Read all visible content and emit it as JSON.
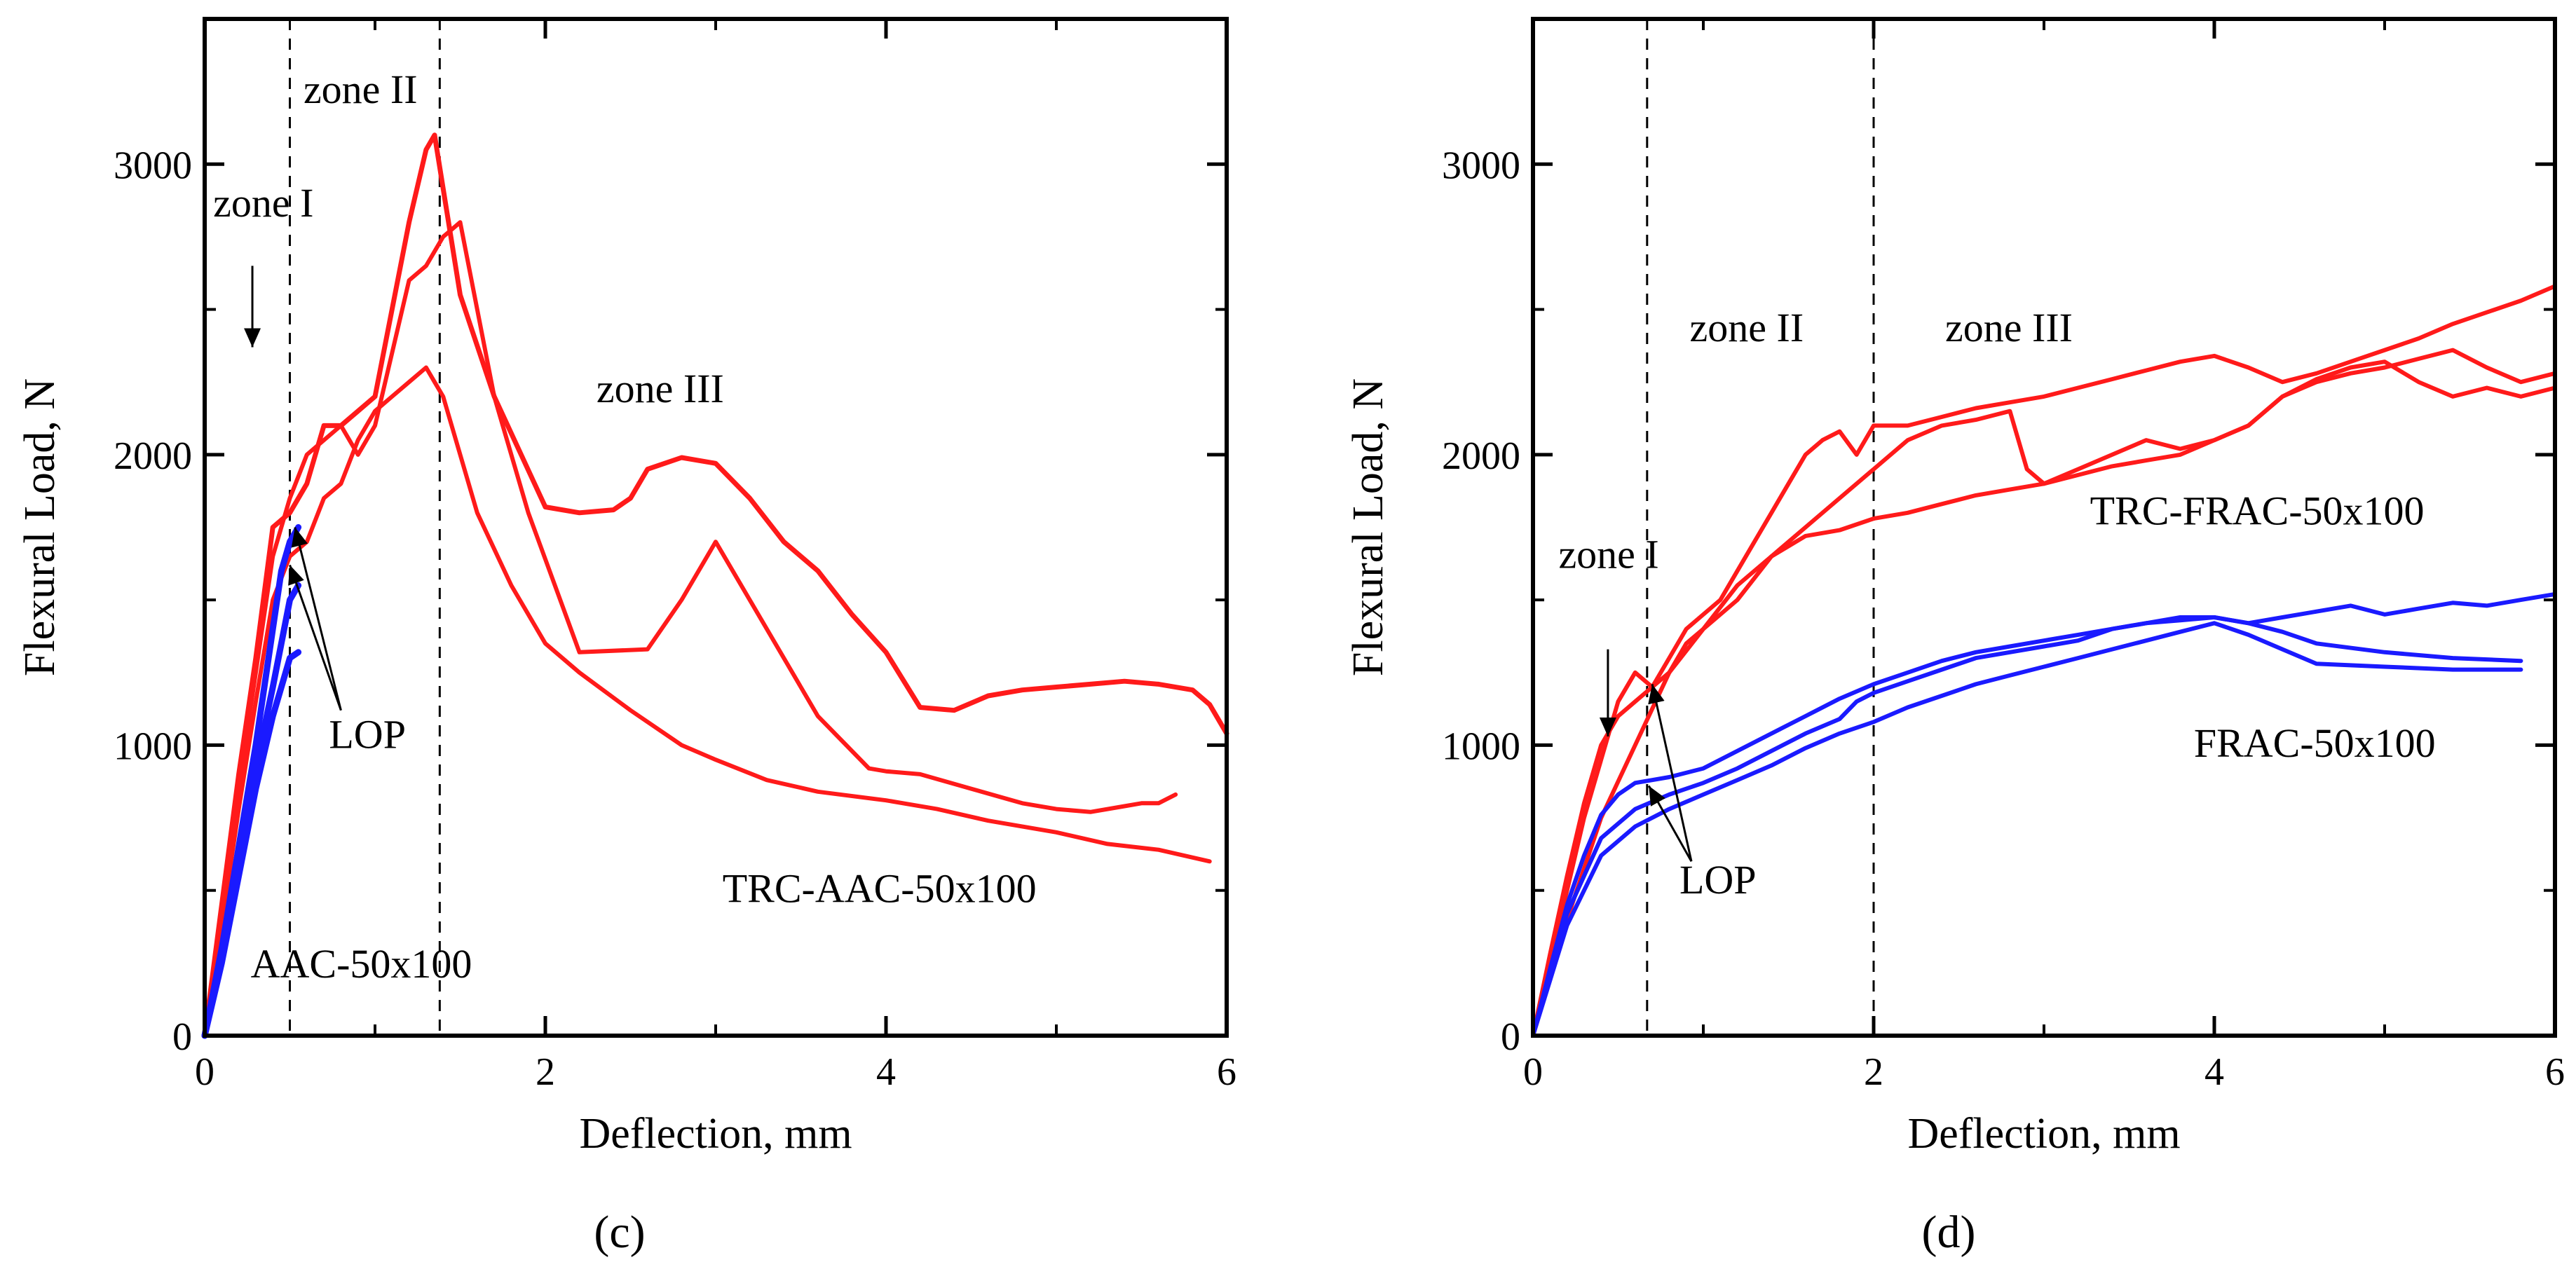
{
  "colors": {
    "red": "#ff1a1a",
    "blue": "#1a1aff",
    "axis": "#000000"
  },
  "chart_data": [
    {
      "type": "line",
      "panel_label": "(c)",
      "xlabel": "Deflection, mm",
      "ylabel": "Flexural Load, N",
      "xlim": [
        0,
        6
      ],
      "ylim": [
        0,
        3500
      ],
      "xticks": [
        0,
        2,
        4,
        6
      ],
      "xtick_labels": [
        "0",
        "2",
        "4",
        "6"
      ],
      "yticks": [
        0,
        1000,
        2000,
        3000
      ],
      "ytick_labels": [
        "0",
        "1000",
        "2000",
        "3000"
      ],
      "vlines": [
        0.5,
        1.38
      ],
      "annotations": [
        {
          "text": "zone I",
          "x": 0.05,
          "y": 2820
        },
        {
          "text": "zone II",
          "x": 0.58,
          "y": 3210
        },
        {
          "text": "zone III",
          "x": 2.3,
          "y": 2180
        },
        {
          "text": "LOP",
          "x": 0.73,
          "y": 990
        },
        {
          "text": "TRC-AAC-50x100",
          "x": 3.04,
          "y": 460
        },
        {
          "text": "AAC-50x100",
          "x": 0.27,
          "y": 200
        }
      ],
      "arrows": [
        {
          "from": [
            0.28,
            2650
          ],
          "to": [
            0.28,
            2370
          ]
        },
        {
          "from": [
            0.8,
            1120
          ],
          "to": [
            0.53,
            1750
          ]
        },
        {
          "from": [
            0.8,
            1120
          ],
          "to": [
            0.5,
            1620
          ]
        }
      ],
      "series": [
        {
          "name": "TRC-AAC-50x100 (1)",
          "color": "red",
          "width": 7,
          "x": [
            0,
            0.1,
            0.2,
            0.3,
            0.4,
            0.5,
            0.6,
            0.7,
            0.8,
            0.9,
            1.0,
            1.1,
            1.2,
            1.3,
            1.35,
            1.5,
            1.7,
            2.0,
            2.2,
            2.4,
            2.5,
            2.6,
            2.8,
            3.0,
            3.2,
            3.4,
            3.6,
            3.8,
            4.0,
            4.2,
            4.4,
            4.6,
            4.8,
            5.0,
            5.2,
            5.4,
            5.6,
            5.8,
            5.9,
            6.0
          ],
          "y": [
            0,
            450,
            900,
            1300,
            1750,
            1800,
            1900,
            2100,
            2100,
            2150,
            2200,
            2500,
            2800,
            3050,
            3100,
            2550,
            2200,
            1820,
            1800,
            1810,
            1850,
            1950,
            1990,
            1970,
            1850,
            1700,
            1600,
            1450,
            1320,
            1130,
            1120,
            1170,
            1190,
            1200,
            1210,
            1220,
            1210,
            1190,
            1140,
            1040
          ]
        },
        {
          "name": "TRC-AAC-50x100 (2)",
          "color": "red",
          "width": 6,
          "x": [
            0,
            0.1,
            0.2,
            0.3,
            0.4,
            0.5,
            0.6,
            0.7,
            0.8,
            0.9,
            1.0,
            1.1,
            1.2,
            1.3,
            1.4,
            1.5,
            1.7,
            1.9,
            2.2,
            2.6,
            2.8,
            3.0,
            3.2,
            3.6,
            3.9,
            4.0,
            4.2,
            4.5,
            4.8,
            5.0,
            5.2,
            5.4,
            5.5,
            5.6,
            5.7
          ],
          "y": [
            0,
            420,
            850,
            1250,
            1650,
            1850,
            2000,
            2050,
            2100,
            2000,
            2100,
            2350,
            2600,
            2650,
            2750,
            2800,
            2200,
            1800,
            1320,
            1330,
            1500,
            1700,
            1500,
            1100,
            920,
            910,
            900,
            850,
            800,
            780,
            770,
            790,
            800,
            800,
            830
          ]
        },
        {
          "name": "TRC-AAC-50x100 (3)",
          "color": "red",
          "width": 6,
          "x": [
            0,
            0.1,
            0.2,
            0.3,
            0.4,
            0.5,
            0.6,
            0.7,
            0.8,
            0.9,
            1.0,
            1.1,
            1.2,
            1.3,
            1.35,
            1.4,
            1.6,
            1.8,
            2.0,
            2.2,
            2.5,
            2.8,
            3.0,
            3.3,
            3.6,
            4.0,
            4.3,
            4.6,
            5.0,
            5.3,
            5.6,
            5.9
          ],
          "y": [
            0,
            380,
            780,
            1150,
            1500,
            1650,
            1700,
            1850,
            1900,
            2050,
            2150,
            2200,
            2250,
            2300,
            2250,
            2200,
            1800,
            1550,
            1350,
            1250,
            1120,
            1000,
            950,
            880,
            840,
            810,
            780,
            740,
            700,
            660,
            640,
            600
          ]
        },
        {
          "name": "AAC-50x100 (1)",
          "color": "blue",
          "width": 9,
          "x": [
            0,
            0.1,
            0.2,
            0.3,
            0.4,
            0.45,
            0.5,
            0.55
          ],
          "y": [
            0,
            300,
            650,
            1000,
            1400,
            1600,
            1700,
            1750
          ]
        },
        {
          "name": "AAC-50x100 (2)",
          "color": "blue",
          "width": 9,
          "x": [
            0,
            0.1,
            0.2,
            0.3,
            0.4,
            0.45,
            0.5,
            0.55
          ],
          "y": [
            0,
            250,
            550,
            850,
            1100,
            1200,
            1300,
            1320
          ]
        },
        {
          "name": "AAC-50x100 (3)",
          "color": "blue",
          "width": 9,
          "x": [
            0,
            0.1,
            0.2,
            0.3,
            0.4,
            0.5,
            0.55
          ],
          "y": [
            0,
            270,
            600,
            920,
            1200,
            1500,
            1550
          ]
        }
      ]
    },
    {
      "type": "line",
      "panel_label": "(d)",
      "xlabel": "Deflection, mm",
      "ylabel": "Flexural Load, N",
      "xlim": [
        0,
        6
      ],
      "ylim": [
        0,
        3500
      ],
      "xticks": [
        0,
        2,
        4,
        6
      ],
      "xtick_labels": [
        "0",
        "2",
        "4",
        "6"
      ],
      "yticks": [
        0,
        1000,
        2000,
        3000
      ],
      "ytick_labels": [
        "0",
        "1000",
        "2000",
        "3000"
      ],
      "vlines": [
        0.67,
        2.0
      ],
      "annotations": [
        {
          "text": "zone II",
          "x": 0.92,
          "y": 2390
        },
        {
          "text": "zone III",
          "x": 2.42,
          "y": 2390
        },
        {
          "text": "zone I",
          "x": 0.15,
          "y": 1610
        },
        {
          "text": "LOP",
          "x": 0.86,
          "y": 490
        },
        {
          "text": "TRC-FRAC-50x100",
          "x": 3.27,
          "y": 1760
        },
        {
          "text": "FRAC-50x100",
          "x": 3.88,
          "y": 960
        }
      ],
      "arrows": [
        {
          "from": [
            0.44,
            1330
          ],
          "to": [
            0.44,
            1030
          ]
        },
        {
          "from": [
            0.93,
            600
          ],
          "to": [
            0.7,
            1210
          ]
        },
        {
          "from": [
            0.93,
            600
          ],
          "to": [
            0.68,
            860
          ]
        }
      ],
      "series": [
        {
          "name": "TRC-FRAC-50x100 (1)",
          "color": "red",
          "width": 6,
          "x": [
            0,
            0.1,
            0.2,
            0.3,
            0.4,
            0.5,
            0.6,
            0.7,
            0.8,
            0.9,
            1.0,
            1.1,
            1.2,
            1.3,
            1.4,
            1.5,
            1.6,
            1.7,
            1.8,
            1.9,
            2.0,
            2.2,
            2.4,
            2.6,
            2.8,
            3.0,
            3.2,
            3.4,
            3.6,
            3.8,
            4.0,
            4.2,
            4.4,
            4.6,
            4.8,
            5.0,
            5.2,
            5.4,
            5.6,
            5.8,
            6.0
          ],
          "y": [
            0,
            250,
            500,
            750,
            950,
            1150,
            1250,
            1200,
            1300,
            1400,
            1450,
            1500,
            1600,
            1700,
            1800,
            1900,
            2000,
            2050,
            2080,
            2000,
            2100,
            2100,
            2130,
            2160,
            2180,
            2200,
            2230,
            2260,
            2290,
            2320,
            2340,
            2300,
            2250,
            2280,
            2320,
            2360,
            2400,
            2450,
            2490,
            2530,
            2580
          ]
        },
        {
          "name": "TRC-FRAC-50x100 (2)",
          "color": "red",
          "width": 6,
          "x": [
            0,
            0.1,
            0.2,
            0.3,
            0.4,
            0.5,
            0.6,
            0.7,
            0.8,
            0.9,
            1.0,
            1.1,
            1.2,
            1.4,
            1.6,
            1.8,
            2.0,
            2.2,
            2.4,
            2.6,
            2.8,
            2.9,
            3.0,
            3.2,
            3.4,
            3.6,
            3.8,
            4.0,
            4.2,
            4.4,
            4.6,
            4.8,
            5.0,
            5.2,
            5.4,
            5.6,
            5.8,
            6.0
          ],
          "y": [
            0,
            280,
            550,
            800,
            1000,
            1100,
            1150,
            1200,
            1250,
            1350,
            1400,
            1450,
            1500,
            1650,
            1750,
            1850,
            1950,
            2050,
            2100,
            2120,
            2150,
            1950,
            1900,
            1950,
            2000,
            2050,
            2020,
            2050,
            2100,
            2200,
            2250,
            2280,
            2300,
            2330,
            2360,
            2300,
            2250,
            2280
          ]
        },
        {
          "name": "TRC-FRAC-50x100 (3)",
          "color": "red",
          "width": 6,
          "x": [
            0,
            0.2,
            0.4,
            0.6,
            0.8,
            1.0,
            1.2,
            1.4,
            1.6,
            1.8,
            2.0,
            2.2,
            2.4,
            2.6,
            2.8,
            3.0,
            3.2,
            3.4,
            3.6,
            3.8,
            4.0,
            4.2,
            4.4,
            4.6,
            4.8,
            5.0,
            5.2,
            5.4,
            5.6,
            5.8,
            6.0
          ],
          "y": [
            0,
            400,
            750,
            1000,
            1250,
            1400,
            1550,
            1650,
            1720,
            1740,
            1780,
            1800,
            1830,
            1860,
            1880,
            1900,
            1930,
            1960,
            1980,
            2000,
            2050,
            2100,
            2200,
            2260,
            2300,
            2320,
            2250,
            2200,
            2230,
            2200,
            2230
          ]
        },
        {
          "name": "FRAC-50x100 (1)",
          "color": "blue",
          "width": 6,
          "x": [
            0,
            0.1,
            0.2,
            0.3,
            0.4,
            0.5,
            0.6,
            0.7,
            0.8,
            1.0,
            1.2,
            1.4,
            1.6,
            1.8,
            2.0,
            2.2,
            2.4,
            2.6,
            2.8,
            3.0,
            3.2,
            3.4,
            3.6,
            3.8,
            4.0,
            4.2,
            4.4,
            4.6,
            4.8,
            5.0,
            5.2,
            5.4,
            5.6,
            5.8,
            6.0
          ],
          "y": [
            0,
            230,
            450,
            620,
            760,
            830,
            870,
            880,
            890,
            920,
            980,
            1040,
            1100,
            1160,
            1210,
            1250,
            1290,
            1320,
            1340,
            1360,
            1380,
            1400,
            1420,
            1430,
            1440,
            1420,
            1440,
            1460,
            1480,
            1450,
            1470,
            1490,
            1480,
            1500,
            1520
          ]
        },
        {
          "name": "FRAC-50x100 (2)",
          "color": "blue",
          "width": 6,
          "x": [
            0,
            0.2,
            0.4,
            0.6,
            0.8,
            1.0,
            1.2,
            1.4,
            1.6,
            1.8,
            1.9,
            2.0,
            2.2,
            2.4,
            2.6,
            2.8,
            3.0,
            3.2,
            3.4,
            3.6,
            3.8,
            4.0,
            4.2,
            4.4,
            4.6,
            5.0,
            5.4,
            5.8
          ],
          "y": [
            0,
            420,
            680,
            780,
            830,
            870,
            920,
            980,
            1040,
            1090,
            1150,
            1180,
            1220,
            1260,
            1300,
            1320,
            1340,
            1360,
            1400,
            1420,
            1440,
            1440,
            1420,
            1390,
            1350,
            1320,
            1300,
            1290
          ]
        },
        {
          "name": "FRAC-50x100 (3)",
          "color": "blue",
          "width": 6,
          "x": [
            0,
            0.2,
            0.4,
            0.6,
            0.8,
            1.0,
            1.2,
            1.4,
            1.6,
            1.8,
            2.0,
            2.2,
            2.4,
            2.6,
            2.8,
            3.0,
            3.2,
            3.4,
            3.6,
            3.8,
            4.0,
            4.2,
            4.4,
            4.6,
            5.0,
            5.4,
            5.8
          ],
          "y": [
            0,
            380,
            620,
            720,
            780,
            830,
            880,
            930,
            990,
            1040,
            1080,
            1130,
            1170,
            1210,
            1240,
            1270,
            1300,
            1330,
            1360,
            1390,
            1420,
            1380,
            1330,
            1280,
            1270,
            1260,
            1260
          ]
        }
      ]
    }
  ]
}
